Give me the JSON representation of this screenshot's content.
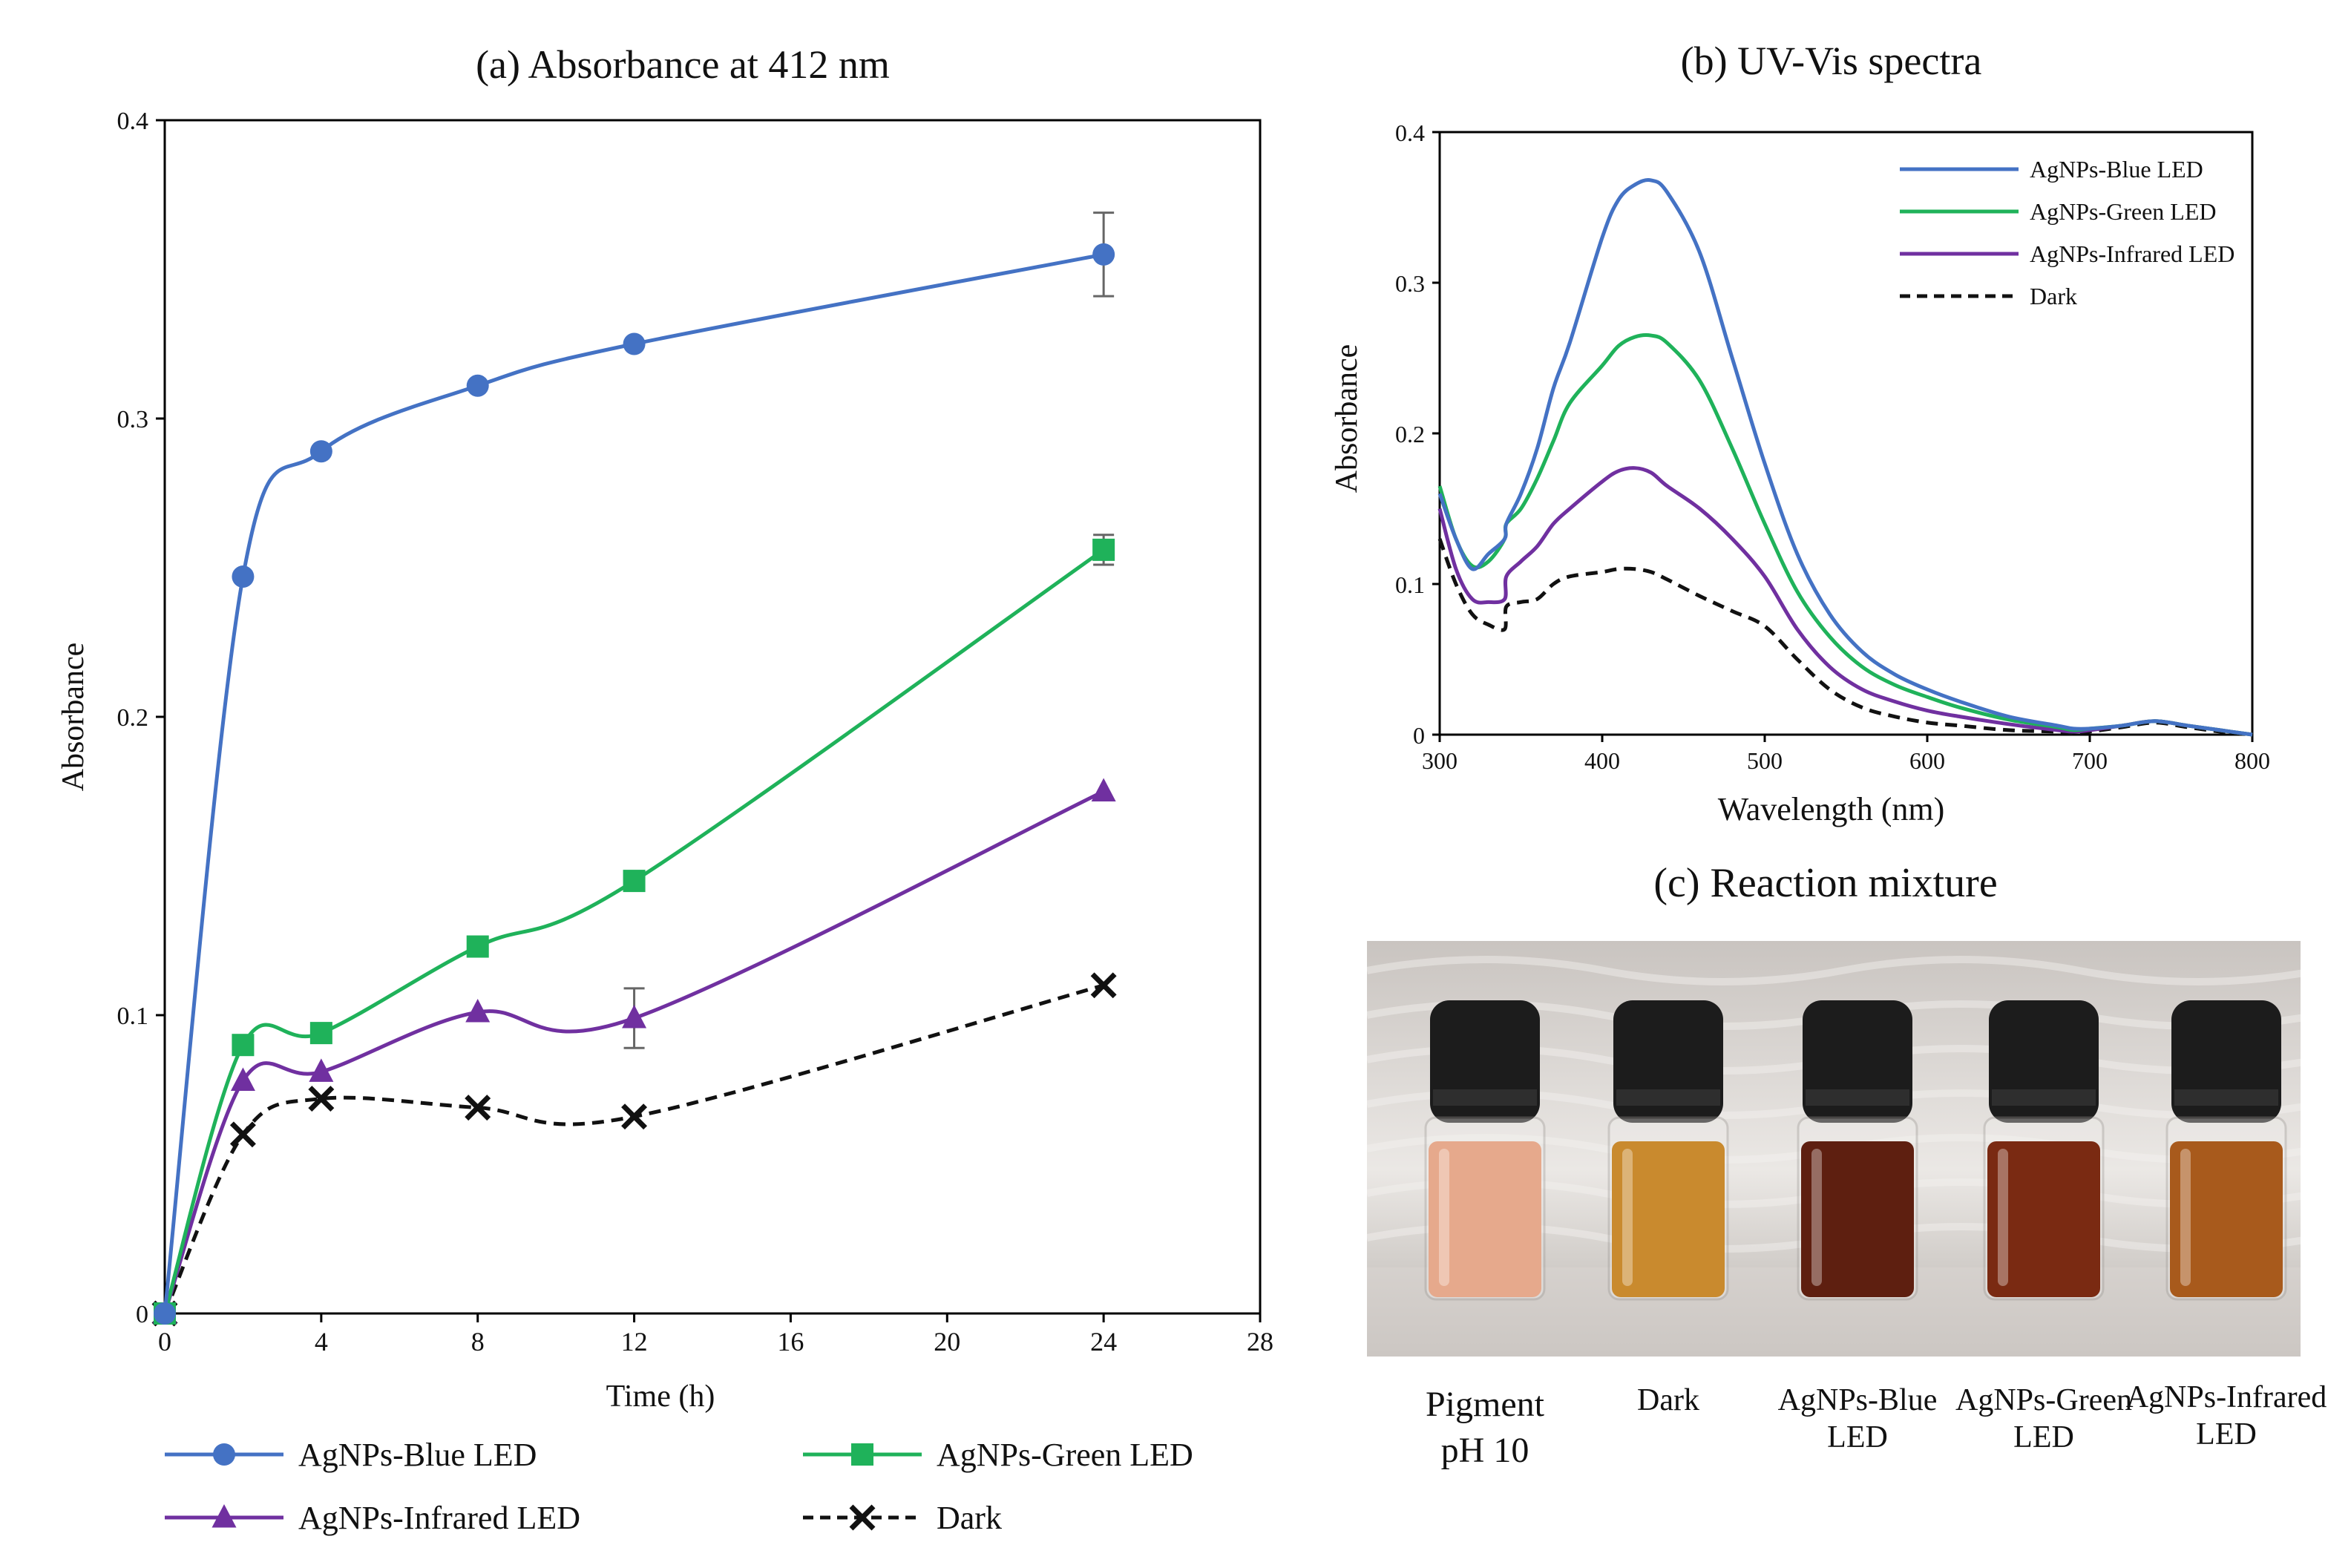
{
  "colors": {
    "blue": "#4472c4",
    "green": "#1fb25a",
    "purple": "#7030a0",
    "dark": "#111111"
  },
  "chart_data": [
    {
      "type": "line",
      "title": "(a) Absorbance at 412 nm",
      "xlabel": "Time (h)",
      "ylabel": "Absorbance",
      "xlim": [
        0,
        28
      ],
      "ylim": [
        0,
        0.4
      ],
      "x_ticks": [
        0,
        4,
        8,
        12,
        16,
        20,
        24,
        28
      ],
      "y_ticks": [
        0,
        0.1,
        0.2,
        0.3,
        0.4
      ],
      "x_tick_labels": [
        "0",
        "4",
        "8",
        "12",
        "16",
        "20",
        "24",
        "28"
      ],
      "y_tick_labels": [
        "0",
        "0.1",
        "0.2",
        "0.3",
        "0.4"
      ],
      "x": [
        0,
        2,
        4,
        8,
        12,
        24
      ],
      "legend_position": "bottom",
      "series": [
        {
          "name": "AgNPs-Blue LED",
          "marker": "circle",
          "color": "#4472c4",
          "values": [
            0,
            0.247,
            0.289,
            0.311,
            0.325,
            0.355
          ],
          "error": [
            0,
            0,
            0,
            0,
            0,
            0.014
          ]
        },
        {
          "name": "AgNPs-Green LED",
          "marker": "square",
          "color": "#1fb25a",
          "values": [
            0,
            0.09,
            0.094,
            0.123,
            0.145,
            0.256
          ],
          "error": [
            0,
            0,
            0,
            0,
            0,
            0.005
          ]
        },
        {
          "name": "AgNPs-Infrared LED",
          "marker": "triangle",
          "color": "#7030a0",
          "values": [
            0,
            0.078,
            0.081,
            0.101,
            0.099,
            0.175
          ],
          "error": [
            0,
            0,
            0,
            0,
            0.01,
            0
          ]
        },
        {
          "name": "Dark",
          "marker": "x",
          "color": "#111111",
          "dashed": true,
          "values": [
            0,
            0.06,
            0.072,
            0.069,
            0.066,
            0.11
          ],
          "error": [
            0,
            0,
            0,
            0,
            0,
            0
          ]
        }
      ]
    },
    {
      "type": "line",
      "title": "(b) UV-Vis spectra",
      "xlabel": "Wavelength (nm)",
      "ylabel": "Absorbance",
      "xlim": [
        300,
        800
      ],
      "ylim": [
        0,
        0.4
      ],
      "x_ticks": [
        300,
        400,
        500,
        600,
        700,
        800
      ],
      "y_ticks": [
        0,
        0.1,
        0.2,
        0.3,
        0.4
      ],
      "x_tick_labels": [
        "300",
        "400",
        "500",
        "600",
        "700",
        "800"
      ],
      "y_tick_labels": [
        "0",
        "0.1",
        "0.2",
        "0.3",
        "0.4"
      ],
      "legend_position": "top-right",
      "series": [
        {
          "name": "AgNPs-Blue LED",
          "color": "#4472c4",
          "x": [
            300,
            310,
            320,
            330,
            340,
            341,
            350,
            360,
            370,
            380,
            400,
            410,
            420,
            430,
            440,
            460,
            480,
            500,
            520,
            540,
            560,
            580,
            600,
            620,
            650,
            680,
            690,
            700,
            720,
            740,
            760,
            780,
            800
          ],
          "values": [
            0.16,
            0.13,
            0.11,
            0.12,
            0.13,
            0.14,
            0.16,
            0.19,
            0.23,
            0.26,
            0.33,
            0.355,
            0.365,
            0.368,
            0.36,
            0.32,
            0.25,
            0.18,
            0.12,
            0.08,
            0.055,
            0.04,
            0.03,
            0.022,
            0.012,
            0.006,
            0.004,
            0.004,
            0.006,
            0.009,
            0.006,
            0.003,
            0
          ]
        },
        {
          "name": "AgNPs-Green LED",
          "color": "#1fb25a",
          "x": [
            300,
            310,
            320,
            330,
            340,
            341,
            350,
            360,
            370,
            380,
            400,
            410,
            420,
            430,
            440,
            460,
            480,
            500,
            520,
            540,
            560,
            580,
            600,
            620,
            650,
            680,
            690,
            700,
            720,
            740,
            760,
            780,
            800
          ],
          "values": [
            0.165,
            0.13,
            0.112,
            0.115,
            0.13,
            0.14,
            0.15,
            0.17,
            0.195,
            0.22,
            0.245,
            0.258,
            0.264,
            0.265,
            0.26,
            0.235,
            0.19,
            0.14,
            0.095,
            0.065,
            0.045,
            0.033,
            0.025,
            0.018,
            0.01,
            0.005,
            0.003,
            0.004,
            0.006,
            0.009,
            0.006,
            0.003,
            0
          ]
        },
        {
          "name": "AgNPs-Infrared LED",
          "color": "#7030a0",
          "x": [
            300,
            310,
            320,
            330,
            340,
            341,
            350,
            360,
            370,
            380,
            400,
            410,
            420,
            430,
            440,
            460,
            480,
            500,
            520,
            540,
            560,
            580,
            600,
            620,
            650,
            680,
            690,
            700,
            720,
            740,
            760,
            780,
            800
          ],
          "values": [
            0.15,
            0.11,
            0.09,
            0.088,
            0.09,
            0.105,
            0.115,
            0.125,
            0.14,
            0.15,
            0.168,
            0.175,
            0.177,
            0.174,
            0.165,
            0.15,
            0.13,
            0.105,
            0.07,
            0.045,
            0.03,
            0.022,
            0.016,
            0.012,
            0.007,
            0.003,
            0.002,
            0.003,
            0.006,
            0.009,
            0.006,
            0.003,
            0
          ]
        },
        {
          "name": "Dark",
          "color": "#111111",
          "dashed": true,
          "x": [
            300,
            310,
            320,
            330,
            340,
            341,
            350,
            360,
            370,
            380,
            400,
            410,
            420,
            430,
            440,
            460,
            480,
            500,
            520,
            540,
            560,
            580,
            600,
            620,
            650,
            680,
            690,
            700,
            720,
            740,
            760,
            780,
            800
          ],
          "values": [
            0.13,
            0.1,
            0.08,
            0.073,
            0.07,
            0.085,
            0.088,
            0.09,
            0.1,
            0.105,
            0.108,
            0.11,
            0.11,
            0.108,
            0.103,
            0.092,
            0.082,
            0.072,
            0.05,
            0.03,
            0.018,
            0.012,
            0.008,
            0.006,
            0.003,
            0.002,
            0.001,
            0.002,
            0.005,
            0.008,
            0.005,
            0.002,
            0
          ]
        }
      ]
    }
  ],
  "panel_c": {
    "title": "(c) Reaction mixture",
    "vials": [
      {
        "label": "Pigment pH 10",
        "line1": "Pigment",
        "line2": "pH 10",
        "liquid_color": "#e6a98c"
      },
      {
        "label": "Dark",
        "line1": "Dark",
        "line2": "",
        "liquid_color": "#c98a2e"
      },
      {
        "label": "AgNPs-Blue LED",
        "line1": "AgNPs-Blue",
        "line2": "LED",
        "liquid_color": "#5e1f10"
      },
      {
        "label": "AgNPs-Green LED",
        "line1": "AgNPs-Green",
        "line2": "LED",
        "liquid_color": "#7a2a12"
      },
      {
        "label": "AgNPs-Infrared LED",
        "line1": "AgNPs-Infrared",
        "line2": "LED",
        "liquid_color": "#a85a1c"
      }
    ]
  }
}
